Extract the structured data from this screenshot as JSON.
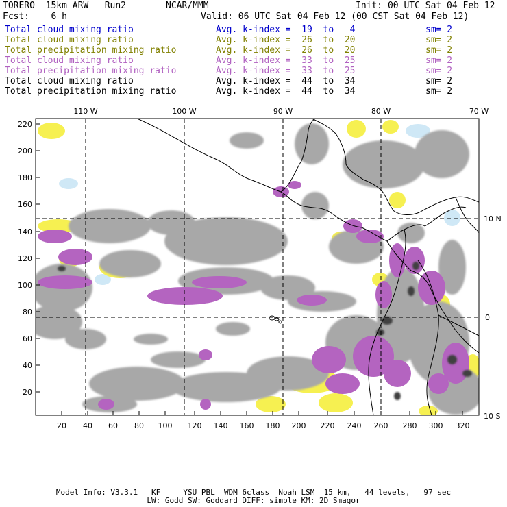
{
  "header": {
    "model": "TORERO  15km ARW   Run2",
    "org": "NCAR/MMM",
    "init": "Init: 00 UTC Sat 04 Feb 12",
    "fcst": "Fcst:    6 h",
    "valid": "Valid: 06 UTC Sat 04 Feb 12 (00 CST Sat 04 Feb 12)"
  },
  "legend": [
    {
      "label": "Total cloud mixing ratio",
      "kindex": "Avg. k-index =  19  to   4",
      "sm": "sm= 2",
      "color": "#0000cc"
    },
    {
      "label": "Total cloud mixing ratio",
      "kindex": "Avg. k-index =  26  to  20",
      "sm": "sm= 2",
      "color": "#808000"
    },
    {
      "label": "Total precipitation mixing ratio",
      "kindex": "Avg. k-index =  26  to  20",
      "sm": "sm= 2",
      "color": "#808000"
    },
    {
      "label": "Total cloud mixing ratio",
      "kindex": "Avg. k-index =  33  to  25",
      "sm": "sm= 2",
      "color": "#b060c0"
    },
    {
      "label": "Total precipitation mixing ratio",
      "kindex": "Avg. k-index =  33  to  25",
      "sm": "sm= 2",
      "color": "#b060c0"
    },
    {
      "label": "Total cloud mixing ratio",
      "kindex": "Avg. k-index =  44  to  34",
      "sm": "sm= 2",
      "color": "#000000"
    },
    {
      "label": "Total precipitation mixing ratio",
      "kindex": "Avg. k-index =  44  to  34",
      "sm": "sm= 2",
      "color": "#000000"
    }
  ],
  "map": {
    "lon_labels": [
      "110 W",
      "100 W",
      "90 W",
      "80 W",
      "70 W"
    ],
    "lat_labels": [
      "10 N",
      "0",
      "10 S"
    ],
    "y_ticks": [
      "220",
      "200",
      "180",
      "160",
      "140",
      "120",
      "100",
      "80",
      "60",
      "40",
      "20"
    ],
    "x_ticks": [
      "20",
      "40",
      "60",
      "80",
      "100",
      "120",
      "140",
      "160",
      "180",
      "200",
      "220",
      "240",
      "260",
      "280",
      "300",
      "320"
    ]
  },
  "footer": {
    "line1": "Model Info: V3.3.1   KF     YSU PBL  WDM 6class  Noah LSM  15 km,   44 levels,   97 sec",
    "line2": "LW: Godd SW: Goddard DIFF: simple KM: 2D Smagor"
  }
}
